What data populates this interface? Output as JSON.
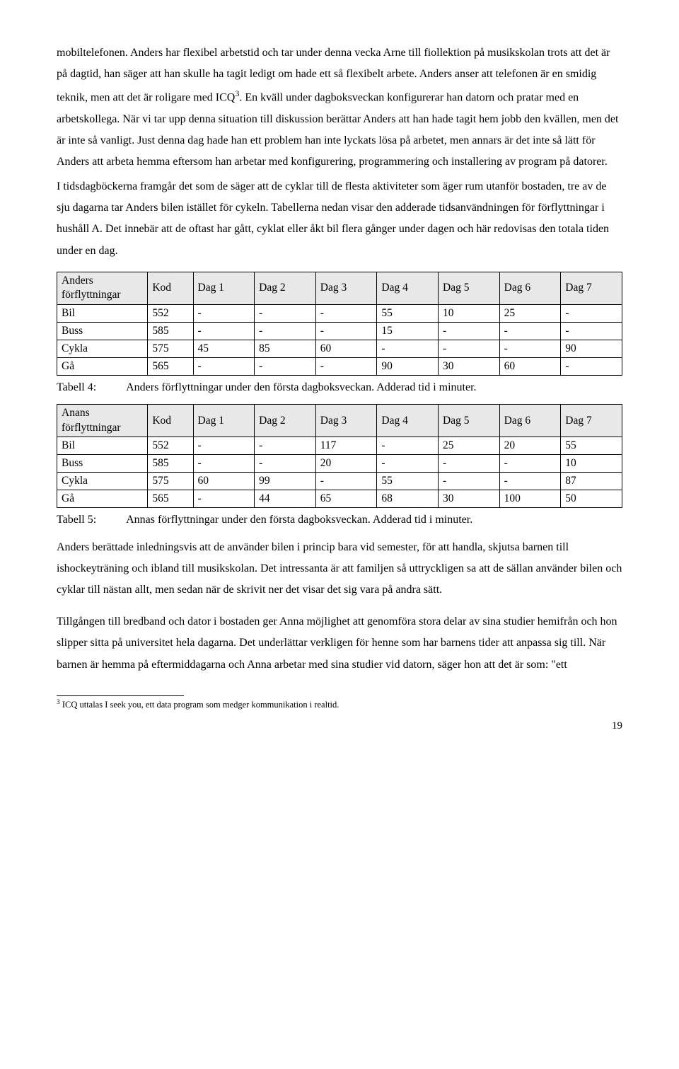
{
  "paragraph1": "mobiltelefonen. Anders har flexibel arbetstid och tar under denna vecka Arne till fiollektion på musikskolan trots att det är på dagtid, han säger att han skulle ha tagit ledigt om hade ett så flexibelt arbete. Anders anser att telefonen är en smidig teknik, men att det är roligare med ICQ",
  "sup1": "3",
  "paragraph1b": ". En kväll under dagboksveckan konfigurerar han datorn och pratar med en arbetskollega. När vi tar upp denna situation till diskussion berättar Anders att han hade tagit hem jobb den kvällen, men det är inte så vanligt. Just denna dag hade han ett problem han inte lyckats lösa på arbetet, men annars är det inte så lätt för Anders att arbeta hemma eftersom han arbetar med konfigurering, programmering och installering av program på datorer.",
  "paragraph2": "I tidsdagböckerna framgår det som de säger att de cyklar till de flesta aktiviteter som äger rum utanför bostaden, tre av de sju dagarna tar Anders bilen istället för cykeln. Tabellerna nedan visar den adderade tidsanvändningen för förflyttningar i hushåll A. Det innebär att de oftast har gått, cyklat eller åkt bil flera gånger under dagen och här redovisas den totala tiden under en dag.",
  "table1": {
    "title": "Anders förflyttningar",
    "header_bg": "#e8e8e8",
    "columns": [
      "",
      "Kod",
      "Dag 1",
      "Dag 2",
      "Dag 3",
      "Dag 4",
      "Dag 5",
      "Dag 6",
      "Dag 7"
    ],
    "rows": [
      [
        "Bil",
        "552",
        "-",
        "-",
        "-",
        "55",
        "10",
        "25",
        "-"
      ],
      [
        "Buss",
        "585",
        "-",
        "-",
        "-",
        "15",
        "-",
        "-",
        "-"
      ],
      [
        "Cykla",
        "575",
        "45",
        "85",
        "60",
        "-",
        "-",
        "-",
        "90"
      ],
      [
        "Gå",
        "565",
        "-",
        "-",
        "-",
        "90",
        "30",
        "60",
        "-"
      ]
    ],
    "col_widths": [
      "16%",
      "8%",
      "10.8%",
      "10.8%",
      "10.8%",
      "10.8%",
      "10.8%",
      "10.8%",
      "10.8%"
    ]
  },
  "caption1_label": "Tabell 4:",
  "caption1_text": "Anders förflyttningar under den första dagboksveckan. Adderad tid i minuter.",
  "table2": {
    "title": "Anans förflyttningar",
    "header_bg": "#e8e8e8",
    "columns": [
      "",
      "Kod",
      "Dag 1",
      "Dag 2",
      "Dag 3",
      "Dag 4",
      "Dag 5",
      "Dag 6",
      "Dag 7"
    ],
    "rows": [
      [
        "Bil",
        "552",
        "-",
        "-",
        "117",
        "-",
        "25",
        "20",
        "55"
      ],
      [
        "Buss",
        "585",
        "-",
        "-",
        "20",
        "-",
        "-",
        "-",
        "10"
      ],
      [
        "Cykla",
        "575",
        "60",
        "99",
        "-",
        "55",
        "-",
        "-",
        "87"
      ],
      [
        "Gå",
        "565",
        "-",
        "44",
        "65",
        "68",
        "30",
        "100",
        "50"
      ]
    ],
    "col_widths": [
      "16%",
      "8%",
      "10.8%",
      "10.8%",
      "10.8%",
      "10.8%",
      "10.8%",
      "10.8%",
      "10.8%"
    ]
  },
  "caption2_label": "Tabell 5:",
  "caption2_text": "Annas förflyttningar under den första dagboksveckan. Adderad tid i minuter.",
  "paragraph3": "Anders berättade inledningsvis att de använder bilen i princip bara vid semester, för att handla, skjutsa barnen till ishockeyträning och ibland till musikskolan. Det intressanta är att familjen så uttryckligen sa att de sällan använder bilen och cyklar till nästan allt, men sedan när de skrivit ner det visar det sig vara på andra sätt.",
  "paragraph4": "Tillgången till bredband och dator i bostaden ger Anna möjlighet att genomföra stora delar av sina studier hemifrån och hon slipper sitta på universitet hela dagarna. Det underlättar verkligen för henne som har barnens tider att anpassa sig till. När barnen är hemma på eftermiddagarna och Anna arbetar med sina studier vid datorn, säger hon att det är som: \"ett",
  "footnote_marker": "3",
  "footnote_text": " ICQ uttalas I seek you, ett data program som medger kommunikation i realtid.",
  "page_number": "19"
}
